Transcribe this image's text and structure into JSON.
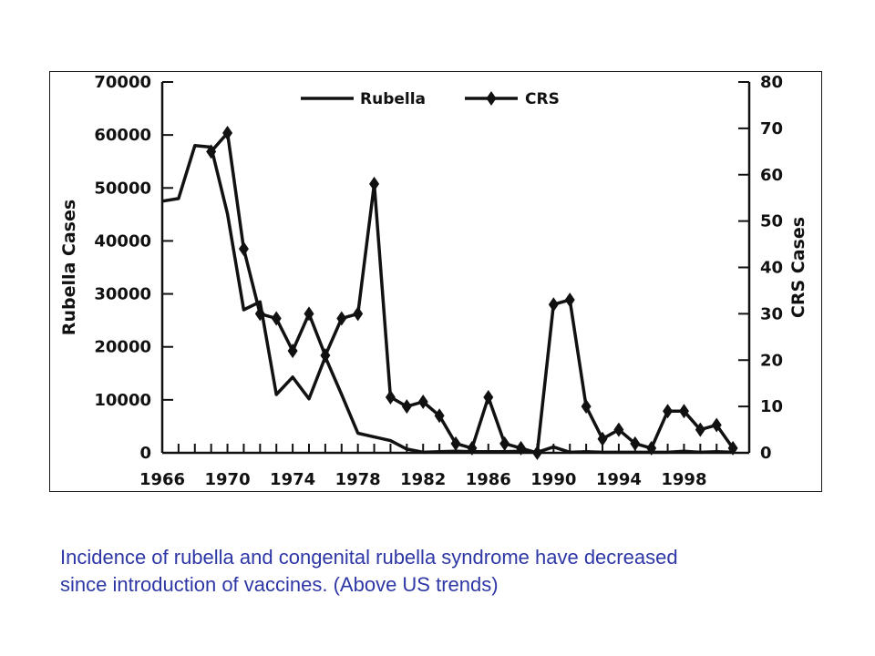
{
  "chart_data": {
    "type": "line",
    "xlim": [
      1966,
      2002
    ],
    "x_ticks": [
      "1966",
      "1970",
      "1974",
      "1978",
      "1982",
      "1986",
      "1990",
      "1994",
      "1998"
    ],
    "x_tick_values": [
      1966,
      1970,
      1974,
      1978,
      1982,
      1986,
      1990,
      1994,
      1998
    ],
    "left_axis": {
      "label": "Rubella Cases",
      "ylim": [
        0,
        70000
      ],
      "ticks": [
        "0",
        "10000",
        "20000",
        "30000",
        "40000",
        "50000",
        "60000",
        "70000"
      ],
      "tick_values": [
        0,
        10000,
        20000,
        30000,
        40000,
        50000,
        60000,
        70000
      ]
    },
    "right_axis": {
      "label": "CRS Cases",
      "ylim": [
        0,
        80
      ],
      "ticks": [
        "0",
        "10",
        "20",
        "30",
        "40",
        "50",
        "60",
        "70",
        "80"
      ],
      "tick_values": [
        0,
        10,
        20,
        30,
        40,
        50,
        60,
        70,
        80
      ]
    },
    "legend_position": "top-center",
    "grid": false,
    "series": [
      {
        "name": "Rubella",
        "axis": "left",
        "marker": "none",
        "x": [
          1966,
          1967,
          1968,
          1969,
          1970,
          1971,
          1972,
          1973,
          1974,
          1975,
          1976,
          1977,
          1978,
          1979,
          1980,
          1981,
          1982,
          1983,
          1984,
          1985,
          1986,
          1987,
          1988,
          1989,
          1990,
          1991,
          1992,
          1993,
          1994,
          1995,
          1996,
          1997,
          1998,
          1999,
          2000,
          2001
        ],
        "values": [
          47500,
          48000,
          58000,
          57700,
          45100,
          27000,
          28500,
          11000,
          14300,
          10200,
          18100,
          11000,
          3700,
          3000,
          2300,
          700,
          100,
          200,
          300,
          200,
          200,
          200,
          300,
          100,
          1100,
          100,
          200,
          100,
          100,
          100,
          100,
          100,
          300,
          100,
          200,
          100
        ]
      },
      {
        "name": "CRS",
        "axis": "right",
        "marker": "diamond",
        "x": [
          1969,
          1970,
          1971,
          1972,
          1973,
          1974,
          1975,
          1976,
          1977,
          1978,
          1979,
          1980,
          1981,
          1982,
          1983,
          1984,
          1985,
          1986,
          1987,
          1988,
          1989,
          1990,
          1991,
          1992,
          1993,
          1994,
          1995,
          1996,
          1997,
          1998,
          1999,
          2000,
          2001
        ],
        "values": [
          65,
          69,
          44,
          30,
          29,
          22,
          30,
          21,
          29,
          30,
          58,
          12,
          10,
          11,
          8,
          2,
          1,
          12,
          2,
          1,
          0,
          32,
          33,
          10,
          3,
          5,
          2,
          1,
          9,
          9,
          5,
          6,
          1
        ]
      }
    ]
  },
  "caption": {
    "line1": "Incidence of rubella and congenital rubella syndrome have decreased",
    "line2": "since introduction of vaccines. (Above US trends)"
  },
  "colors": {
    "line": "#111111",
    "caption": "#2e37a6",
    "border": "#1a1a1a"
  }
}
